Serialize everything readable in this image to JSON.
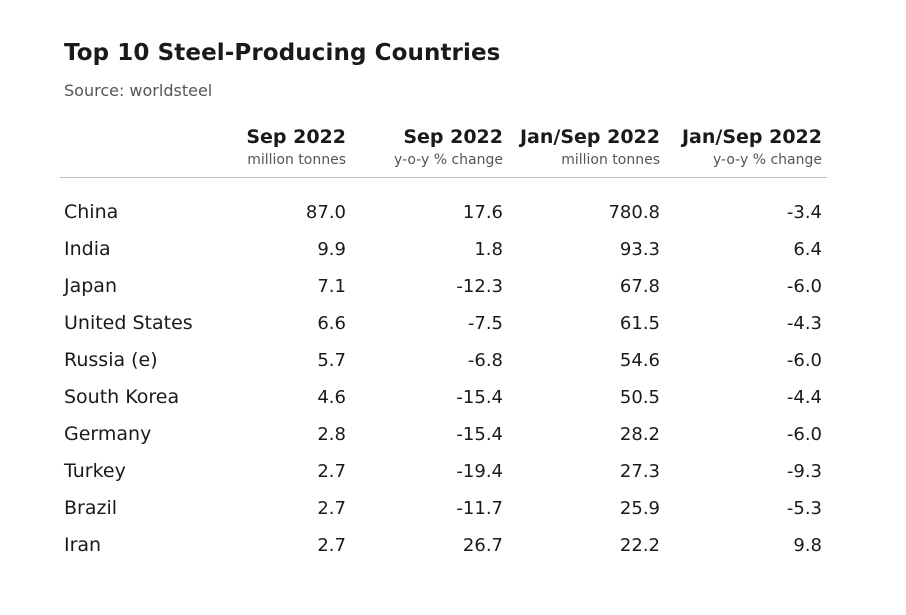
{
  "title": "Top 10 Steel-Producing Countries",
  "source": "Source: worldsteel",
  "chart_data": {
    "type": "table",
    "columns": [
      {
        "label": "Sep 2022",
        "unit": "million tonnes"
      },
      {
        "label": "Sep 2022",
        "unit": "y-o-y % change"
      },
      {
        "label": "Jan/Sep 2022",
        "unit": "million tonnes"
      },
      {
        "label": "Jan/Sep 2022",
        "unit": "y-o-y % change"
      }
    ],
    "rows": [
      {
        "country": "China",
        "values": [
          "87.0",
          "17.6",
          "780.8",
          "-3.4"
        ]
      },
      {
        "country": "India",
        "values": [
          "9.9",
          "1.8",
          "93.3",
          "6.4"
        ]
      },
      {
        "country": "Japan",
        "values": [
          "7.1",
          "-12.3",
          "67.8",
          "-6.0"
        ]
      },
      {
        "country": "United States",
        "values": [
          "6.6",
          "-7.5",
          "61.5",
          "-4.3"
        ]
      },
      {
        "country": "Russia (e)",
        "values": [
          "5.7",
          "-6.8",
          "54.6",
          "-6.0"
        ]
      },
      {
        "country": "South Korea",
        "values": [
          "4.6",
          "-15.4",
          "50.5",
          "-4.4"
        ]
      },
      {
        "country": "Germany",
        "values": [
          "2.8",
          "-15.4",
          "28.2",
          "-6.0"
        ]
      },
      {
        "country": "Turkey",
        "values": [
          "2.7",
          "-19.4",
          "27.3",
          "-9.3"
        ]
      },
      {
        "country": "Brazil",
        "values": [
          "2.7",
          "-11.7",
          "25.9",
          "-5.3"
        ]
      },
      {
        "country": "Iran",
        "values": [
          "2.7",
          "26.7",
          "22.2",
          "9.8"
        ]
      }
    ]
  }
}
